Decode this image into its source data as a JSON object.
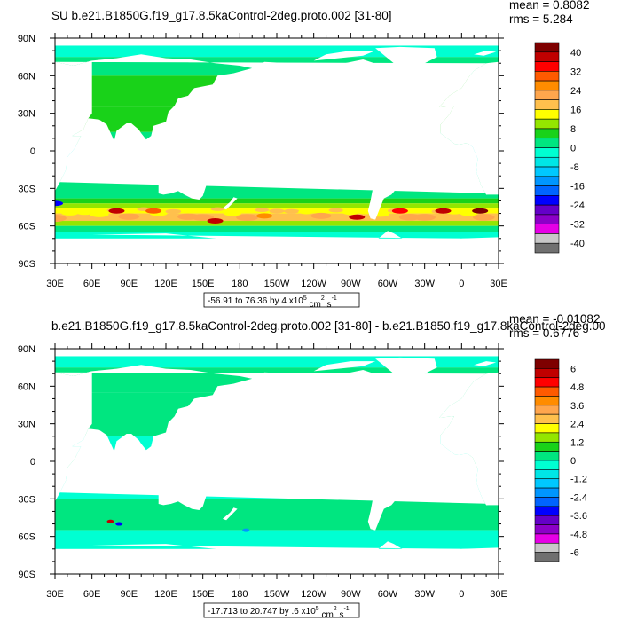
{
  "chart_data": [
    {
      "type": "heatmap",
      "title": "SU b.e21.B1850G.f19_g17.8.5kaControl-2deg.proto.002 [31-80]",
      "stats": {
        "mean": "mean = 0.8082",
        "rms": "rms = 5.284"
      },
      "range_label": "-56.91 to 76.36 by 4 x10",
      "range_exp": "5",
      "range_units": " cm",
      "range_units_exp": "2",
      "range_units2": " s",
      "range_units2_exp": "-1",
      "x_tick_labels": [
        "30E",
        "60E",
        "90E",
        "120E",
        "150E",
        "180",
        "150W",
        "120W",
        "90W",
        "60W",
        "30W",
        "0",
        "30E"
      ],
      "y_tick_labels": [
        "90N",
        "60N",
        "30N",
        "0",
        "30S",
        "60S",
        "90S"
      ],
      "colorbar_labels": [
        "40",
        "32",
        "24",
        "16",
        "8",
        "0",
        "-8",
        "-16",
        "-24",
        "-32",
        "-40"
      ],
      "colors": [
        "#7e0000",
        "#c00000",
        "#ff0000",
        "#ff5a00",
        "#ff8c00",
        "#ffa64d",
        "#ffc04d",
        "#ffff00",
        "#94e600",
        "#19d219",
        "#00e680",
        "#00ffd2",
        "#00e6e6",
        "#00c8ff",
        "#0096ff",
        "#0064ff",
        "#0000ff",
        "#6400c8",
        "#8c00c8",
        "#e600e6",
        "#c8c8c8",
        "#707070"
      ],
      "bands": [
        {
          "lat_min": 75,
          "lat_max": 84,
          "color_index": 11
        },
        {
          "lat_min": 60,
          "lat_max": 75,
          "color_index": 10
        },
        {
          "lat_min": 35,
          "lat_max": 60,
          "color_index": 9
        },
        {
          "lat_min": 15,
          "lat_max": 35,
          "color_index": 9
        },
        {
          "lat_min": 5,
          "lat_max": 15,
          "color_index": 10
        },
        {
          "lat_min": -5,
          "lat_max": 5,
          "color_index": 12
        },
        {
          "lat_min": -20,
          "lat_max": -5,
          "color_index": 11
        },
        {
          "lat_min": -38,
          "lat_max": -20,
          "color_index": 10
        },
        {
          "lat_min": -42,
          "lat_max": -38,
          "color_index": 9
        },
        {
          "lat_min": -46,
          "lat_max": -42,
          "color_index": 8
        },
        {
          "lat_min": -50,
          "lat_max": -46,
          "color_index": 7
        },
        {
          "lat_min": -56,
          "lat_max": -50,
          "color_index": 6
        },
        {
          "lat_min": -60,
          "lat_max": -56,
          "color_index": 8
        },
        {
          "lat_min": -65,
          "lat_max": -60,
          "color_index": 10
        },
        {
          "lat_min": -70,
          "lat_max": -65,
          "color_index": 11
        }
      ],
      "spots": [
        {
          "lon": 80,
          "lat": -48,
          "color_index": 1
        },
        {
          "lon": 110,
          "lat": -48,
          "color_index": 3
        },
        {
          "lon": 160,
          "lat": -56,
          "color_index": 1
        },
        {
          "lon": 200,
          "lat": -52,
          "color_index": 4
        },
        {
          "lon": 275,
          "lat": -53,
          "color_index": 1
        },
        {
          "lon": 310,
          "lat": -48,
          "color_index": 2
        },
        {
          "lon": 345,
          "lat": -48,
          "color_index": 1
        },
        {
          "lon": 15,
          "lat": -48,
          "color_index": 0
        },
        {
          "lon": 30,
          "lat": -42,
          "color_index": 16
        }
      ]
    },
    {
      "type": "heatmap",
      "title": "b.e21.B1850G.f19_g17.8.5kaControl-2deg.proto.002 [31-80] - b.e21.B1850.f19_g17.8kaControl-2deg.00",
      "stats": {
        "mean": "mean = -0.01082",
        "rms": "rms = 0.6776"
      },
      "range_label": "-17.713 to 20.747 by .6 x10",
      "range_exp": "5",
      "range_units": " cm",
      "range_units_exp": "2",
      "range_units2": " s",
      "range_units2_exp": "-1",
      "x_tick_labels": [
        "30E",
        "60E",
        "90E",
        "120E",
        "150E",
        "180",
        "150W",
        "120W",
        "90W",
        "60W",
        "30W",
        "0",
        "30E"
      ],
      "y_tick_labels": [
        "90N",
        "60N",
        "30N",
        "0",
        "30S",
        "60S",
        "90S"
      ],
      "colorbar_labels": [
        "6",
        "4.8",
        "3.6",
        "2.4",
        "1.2",
        "0",
        "-1.2",
        "-2.4",
        "-3.6",
        "-4.8",
        "-6"
      ],
      "colors": [
        "#7e0000",
        "#c00000",
        "#ff0000",
        "#ff5a00",
        "#ff8c00",
        "#ffa64d",
        "#ffc04d",
        "#ffff00",
        "#94e600",
        "#19d219",
        "#00e680",
        "#00ffd2",
        "#00e6e6",
        "#00c8ff",
        "#0096ff",
        "#0064ff",
        "#0000ff",
        "#6400c8",
        "#8c00c8",
        "#e600e6",
        "#c8c8c8",
        "#707070"
      ],
      "bands": [
        {
          "lat_min": 75,
          "lat_max": 84,
          "color_index": 11
        },
        {
          "lat_min": 55,
          "lat_max": 75,
          "color_index": 10
        },
        {
          "lat_min": 20,
          "lat_max": 55,
          "color_index": 10
        },
        {
          "lat_min": 5,
          "lat_max": 20,
          "color_index": 11
        },
        {
          "lat_min": -5,
          "lat_max": 5,
          "color_index": 10
        },
        {
          "lat_min": -30,
          "lat_max": -5,
          "color_index": 11
        },
        {
          "lat_min": -55,
          "lat_max": -30,
          "color_index": 10
        },
        {
          "lat_min": -70,
          "lat_max": -55,
          "color_index": 11
        }
      ],
      "spots": [
        {
          "lon": 75,
          "lat": -48,
          "color_index": 1
        },
        {
          "lon": 82,
          "lat": -50,
          "color_index": 16
        },
        {
          "lon": 185,
          "lat": -55,
          "color_index": 14
        },
        {
          "lon": 350,
          "lat": -10,
          "color_index": 9
        }
      ]
    }
  ]
}
